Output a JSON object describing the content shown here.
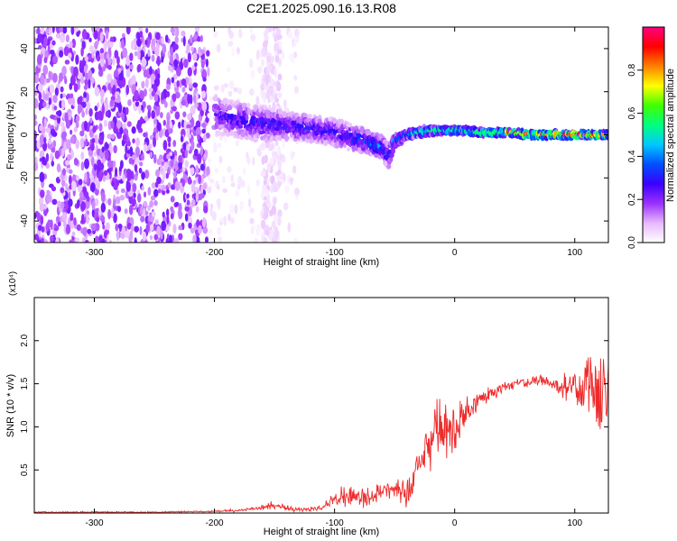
{
  "chart_data": [
    {
      "type": "heatmap",
      "title": "C2E1.2025.090.16.13.R08",
      "xlabel": "Height of straight line (km)",
      "ylabel": "Frequency (Hz)",
      "xlim": [
        -350,
        128
      ],
      "ylim": [
        -50,
        50
      ],
      "xticks": [
        -300,
        -200,
        -100,
        0,
        100
      ],
      "xtick_labels": [
        "-300",
        "-200",
        "-100",
        "0",
        "100"
      ],
      "yticks": [
        -40,
        -20,
        0,
        20,
        40
      ],
      "ytick_labels": [
        "-40",
        "-20",
        "0",
        "20",
        "40"
      ],
      "colorbar": {
        "label": "Normalized spectral amplitude",
        "range": [
          0,
          1
        ],
        "ticks": [
          0.0,
          0.2,
          0.4,
          0.6,
          0.8
        ],
        "tick_labels": [
          "0.0",
          "0.2",
          "0.4",
          "0.6",
          "0.8"
        ],
        "colormap": [
          "#ffffff",
          "#e6b8ff",
          "#9b30ff",
          "#3a00ff",
          "#0050ff",
          "#00c8ff",
          "#00ff80",
          "#40ff00",
          "#ffff00",
          "#ff8000",
          "#ff0000",
          "#ff0080"
        ]
      },
      "regions": [
        {
          "x_range": [
            -350,
            -205
          ],
          "freq_range": [
            -50,
            50
          ],
          "amplitude": 0.15,
          "pattern": "broadband noise"
        },
        {
          "x_range": [
            -205,
            -130
          ],
          "freq_range": [
            -50,
            50
          ],
          "amplitude": 0.03,
          "pattern": "sparse noise"
        },
        {
          "x_range": [
            -160,
            -145
          ],
          "freq_range": [
            -50,
            50
          ],
          "amplitude": 0.05,
          "pattern": "sparse noise"
        }
      ],
      "trace": {
        "x": [
          -200,
          -180,
          -160,
          -140,
          -120,
          -100,
          -80,
          -70,
          -60,
          -55,
          -50,
          -40,
          -30,
          -20,
          -10,
          0,
          10,
          20,
          30,
          40,
          50,
          60,
          80,
          100,
          120,
          128
        ],
        "freq_center": [
          9,
          7,
          5,
          4,
          3,
          1,
          -2,
          -4,
          -6,
          -10,
          -3,
          0,
          1,
          2,
          2,
          2,
          2,
          1,
          1,
          1,
          1,
          0,
          0,
          0,
          0,
          0
        ],
        "freq_halfwidth": [
          9,
          8,
          8,
          6,
          6,
          6,
          6,
          5,
          5,
          6,
          3,
          2,
          2,
          2,
          1.5,
          1.5,
          1.5,
          1.5,
          1.5,
          1.5,
          1.5,
          1.5,
          1.5,
          1.5,
          1.5,
          1.5
        ],
        "amplitude": [
          0.25,
          0.28,
          0.3,
          0.32,
          0.32,
          0.3,
          0.35,
          0.4,
          0.4,
          0.3,
          0.45,
          0.5,
          0.6,
          0.65,
          0.65,
          0.7,
          0.75,
          0.75,
          0.8,
          0.85,
          0.95,
          0.98,
          0.98,
          0.98,
          0.98,
          0.98
        ]
      }
    },
    {
      "type": "line",
      "title": "",
      "xlabel": "Height of straight line (km)",
      "ylabel": "SNR (10 * v/v)",
      "y_multiplier": "(x10⁴)",
      "xlim": [
        -350,
        128
      ],
      "ylim": [
        0,
        2.5
      ],
      "xticks": [
        -300,
        -200,
        -100,
        0,
        100
      ],
      "xtick_labels": [
        "-300",
        "-200",
        "-100",
        "0",
        "100"
      ],
      "yticks": [
        0.5,
        1.0,
        1.5,
        2.0
      ],
      "ytick_labels": [
        "0.5",
        "1.0",
        "1.5",
        "2.0"
      ],
      "series": [
        {
          "color": "#ee2a2a",
          "x": [
            -350,
            -300,
            -250,
            -200,
            -180,
            -160,
            -150,
            -130,
            -110,
            -100,
            -90,
            -80,
            -70,
            -60,
            -50,
            -40,
            -35,
            -30,
            -25,
            -20,
            -15,
            -10,
            -5,
            0,
            5,
            10,
            15,
            20,
            25,
            30,
            40,
            50,
            60,
            70,
            80,
            90,
            100,
            105,
            110,
            115,
            120,
            125,
            128
          ],
          "y": [
            0.01,
            0.01,
            0.01,
            0.02,
            0.03,
            0.06,
            0.08,
            0.04,
            0.06,
            0.15,
            0.2,
            0.18,
            0.2,
            0.25,
            0.3,
            0.2,
            0.35,
            0.55,
            0.75,
            0.85,
            1.0,
            0.95,
            1.0,
            0.9,
            1.05,
            1.2,
            1.25,
            1.3,
            1.35,
            1.4,
            1.45,
            1.5,
            1.5,
            1.55,
            1.5,
            1.45,
            1.55,
            1.4,
            1.6,
            1.5,
            1.45,
            1.35,
            1.4
          ],
          "noise": [
            0.01,
            0.01,
            0.01,
            0.01,
            0.02,
            0.04,
            0.05,
            0.03,
            0.04,
            0.12,
            0.14,
            0.12,
            0.12,
            0.14,
            0.16,
            0.15,
            0.2,
            0.3,
            0.35,
            0.4,
            0.4,
            0.4,
            0.35,
            0.3,
            0.25,
            0.2,
            0.18,
            0.15,
            0.12,
            0.1,
            0.08,
            0.06,
            0.06,
            0.06,
            0.1,
            0.15,
            0.22,
            0.3,
            0.35,
            0.45,
            0.55,
            0.5,
            0.45
          ]
        }
      ]
    }
  ]
}
